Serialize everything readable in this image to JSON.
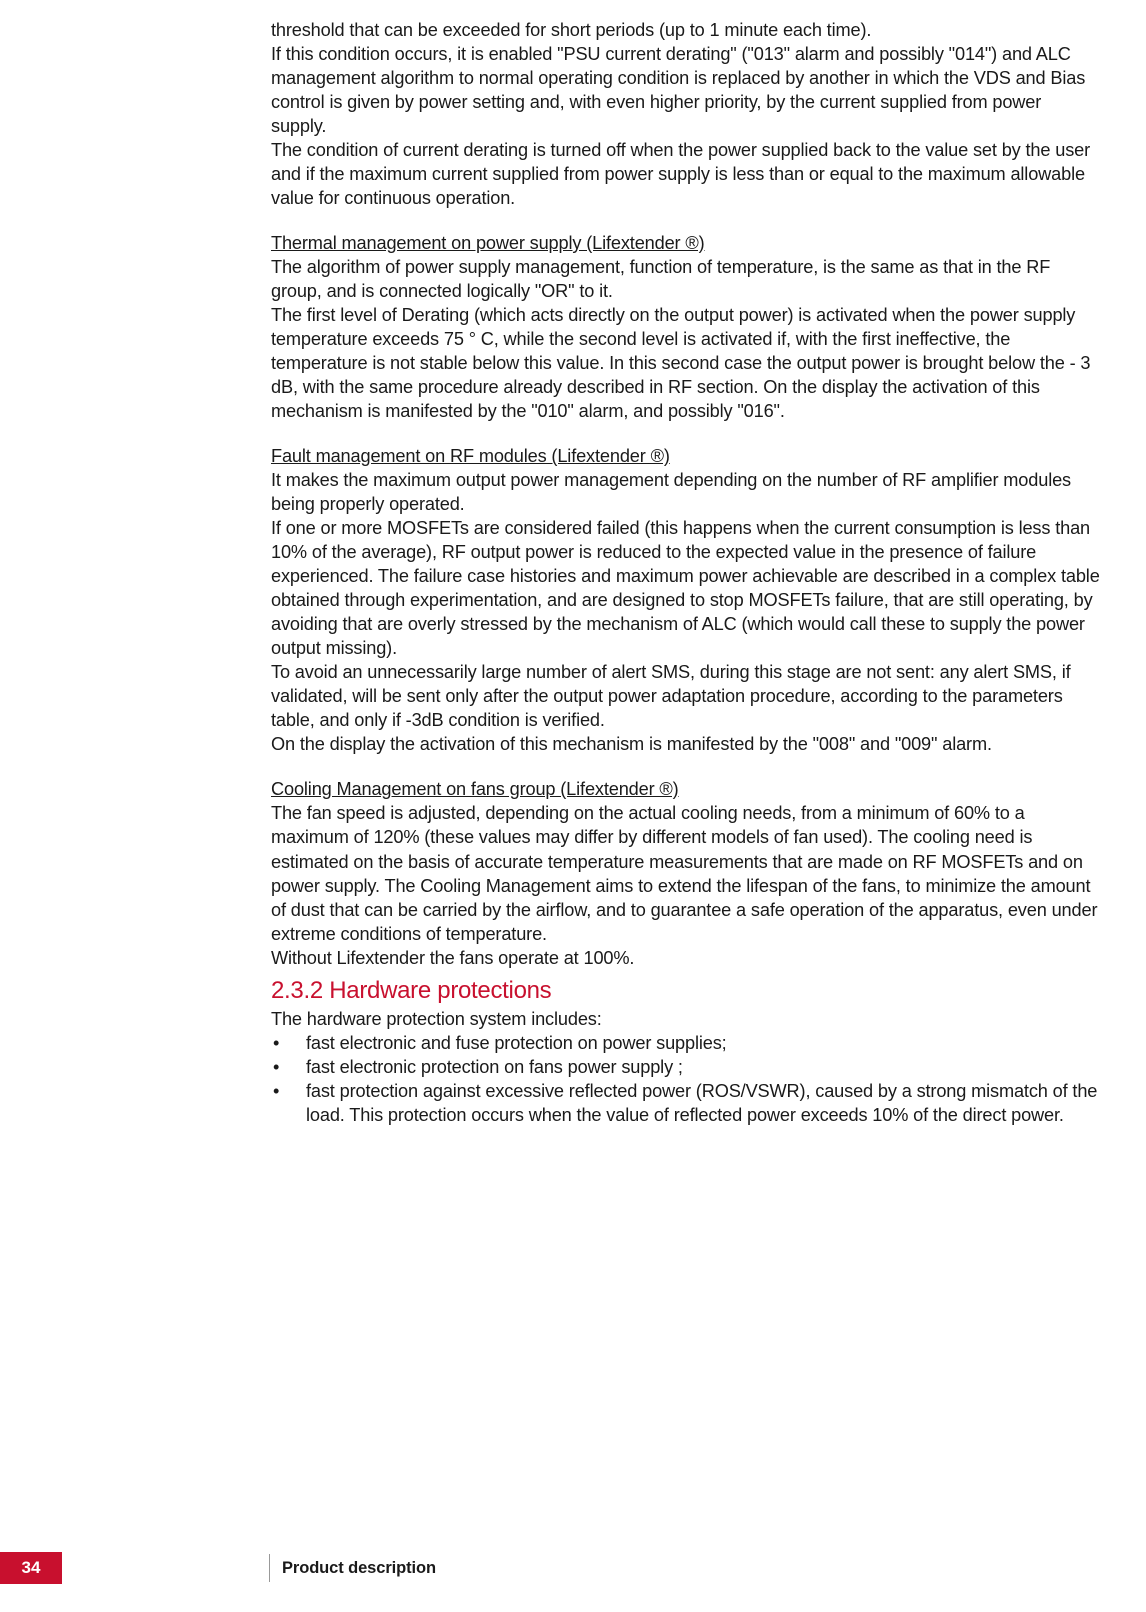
{
  "paragraphs": {
    "p1": "threshold that can be exceeded for short periods (up to 1 minute each time).",
    "p2": "If this condition occurs, it is enabled \"PSU current derating\" (\"013\" alarm and possibly \"014\") and ALC management algorithm to normal operating condition is replaced by another in which the VDS and Bias control is given by power setting and, with even higher priority, by the current supplied from power supply.",
    "p3": "The condition of current derating is turned off when the power supplied back to the value set by the user and if the maximum current supplied from power supply is less than or equal to the maximum allowable value for continuous operation.",
    "heading1": "Thermal management on power supply (Lifextender ®)",
    "p4": "The algorithm of power supply management, function of temperature, is the same as that in the RF group, and is connected logically \"OR\" to it.",
    "p5": "The first level of Derating (which acts directly on the output power) is activated when the power supply temperature exceeds 75 ° C, while the second level is activated if, with the first ineffective, the temperature is not stable below this value. In this second case the output power is brought below the - 3 dB, with the same procedure already described in RF section. On the display the activation of this mechanism is manifested by the \"010\" alarm, and possibly \"016\".",
    "heading2": "Fault management on RF modules (Lifextender ®)",
    "p6": "It makes the maximum output power management depending on the number of RF amplifier modules being properly operated.",
    "p7": "If one or more MOSFETs are considered failed (this happens when the current consumption is less than 10% of the average), RF output power is reduced to the expected value in the presence of failure experienced. The failure case histories and maximum power achievable are described in a complex table obtained through experimentation, and are designed to stop MOSFETs failure, that are still operating, by avoiding that are overly stressed by the mechanism of ALC (which would call these to supply the power output missing).",
    "p8": "To avoid an unnecessarily large number of alert SMS, during this stage are not sent: any alert SMS, if validated, will be sent only after the output power adaptation procedure, according to the parameters table, and only if -3dB condition is verified.",
    "p9": "On the display the activation of this mechanism is manifested by the \"008\" and \"009\" alarm.",
    "heading3": "Cooling Management on fans group (Lifextender ®)",
    "p10": "The fan speed is adjusted, depending on the actual cooling needs, from a minimum of 60% to a maximum of 120% (these values may differ by different models of fan used). The cooling need is estimated on the basis of accurate temperature measurements that are made on RF MOSFETs and on power supply. The Cooling Management aims to extend the lifespan of the fans, to minimize the amount of dust that can be carried by the airflow, and to guarantee a safe operation of the apparatus, even under extreme conditions of temperature.",
    "p11": "Without Lifextender the fans operate at 100%."
  },
  "subsection": {
    "number": "2.3.2",
    "title": "Hardware protections",
    "intro": "The hardware protection system includes:",
    "bullets": [
      "fast electronic and fuse protection on power supplies;",
      "fast electronic protection on fans power supply ;",
      "fast protection against excessive reflected power (ROS/VSWR), caused by a strong mismatch of the load. This protection occurs when the value of reflected power exceeds 10% of the direct power."
    ]
  },
  "footer": {
    "pageNumber": "34",
    "label": "Product description"
  },
  "colors": {
    "accent": "#c8102e",
    "text": "#1a1a1a",
    "background": "#ffffff"
  }
}
